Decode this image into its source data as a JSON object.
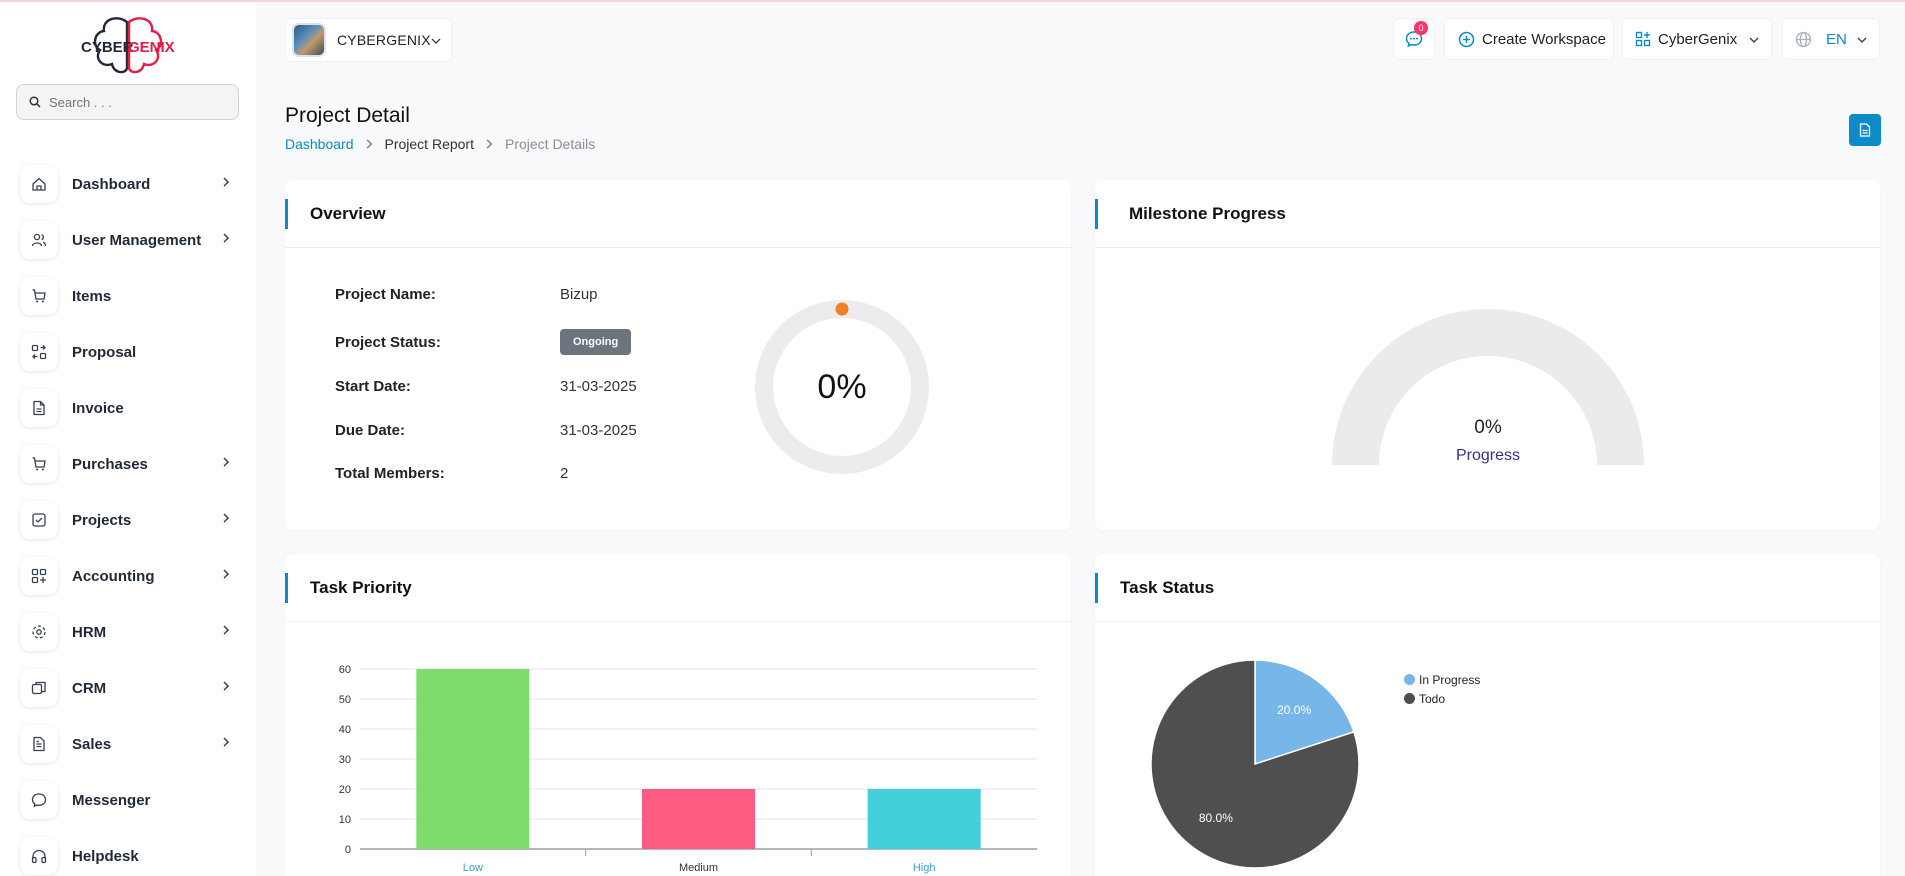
{
  "brand": {
    "logo_text_a": "CYBER",
    "logo_text_b": "GENIX"
  },
  "search": {
    "placeholder": "Search . . ."
  },
  "sidebar": {
    "items": [
      {
        "label": "Dashboard",
        "icon": "home-icon",
        "has_children": true
      },
      {
        "label": "User Management",
        "icon": "users-icon",
        "has_children": true
      },
      {
        "label": "Items",
        "icon": "cart-icon",
        "has_children": false
      },
      {
        "label": "Proposal",
        "icon": "swap-icon",
        "has_children": false
      },
      {
        "label": "Invoice",
        "icon": "file-icon",
        "has_children": false
      },
      {
        "label": "Purchases",
        "icon": "cart-icon",
        "has_children": true
      },
      {
        "label": "Projects",
        "icon": "check-square-icon",
        "has_children": true
      },
      {
        "label": "Accounting",
        "icon": "grid-icon",
        "has_children": true
      },
      {
        "label": "HRM",
        "icon": "hrm-icon",
        "has_children": true
      },
      {
        "label": "CRM",
        "icon": "layers-icon",
        "has_children": true
      },
      {
        "label": "Sales",
        "icon": "file-text-icon",
        "has_children": true
      },
      {
        "label": "Messenger",
        "icon": "message-icon",
        "has_children": false
      },
      {
        "label": "Helpdesk",
        "icon": "headphones-icon",
        "has_children": false
      }
    ]
  },
  "topbar": {
    "workspace_name": "CYBERGENIX",
    "notification_count": "0",
    "create_workspace": "Create Workspace",
    "company": "CyberGenix",
    "language": "EN"
  },
  "header": {
    "title": "Project Detail",
    "breadcrumb": [
      "Dashboard",
      "Project Report",
      "Project Details"
    ]
  },
  "overview": {
    "title": "Overview",
    "rows": [
      {
        "label": "Project Name:",
        "value": "Bizup"
      },
      {
        "label": "Project Status:",
        "value": "Ongoing"
      },
      {
        "label": "Start Date:",
        "value": "31-03-2025"
      },
      {
        "label": "Due Date:",
        "value": "31-03-2025"
      },
      {
        "label": "Total Members:",
        "value": "2"
      }
    ],
    "progress_text": "0%",
    "progress_value": 0,
    "accent_color": "#f47f24"
  },
  "milestone": {
    "title": "Milestone Progress",
    "value_text": "0%",
    "label": "Progress",
    "progress_value": 0
  },
  "task_priority": {
    "title": "Task Priority",
    "chart_data": {
      "type": "bar",
      "categories": [
        "Low",
        "Medium",
        "High"
      ],
      "values": [
        60,
        20,
        20
      ],
      "colors": [
        "#7ddc6a",
        "#ff5c84",
        "#44d0da"
      ],
      "label_colors": [
        "#3aa0d8",
        "#333333",
        "#3aa0d8"
      ],
      "ylim": [
        0,
        60
      ],
      "yticks": [
        "0",
        "10",
        "20",
        "30",
        "40",
        "50",
        "60"
      ],
      "title": "",
      "xlabel": "",
      "ylabel": ""
    }
  },
  "task_status": {
    "title": "Task Status",
    "chart_data": {
      "type": "pie",
      "labels": [
        "In Progress",
        "Todo"
      ],
      "values": [
        20,
        80
      ],
      "value_labels": [
        "20.0%",
        "80.0%"
      ],
      "colors": [
        "#76b6e8",
        "#4f4f4f"
      ],
      "legend_position": "top-right"
    }
  }
}
